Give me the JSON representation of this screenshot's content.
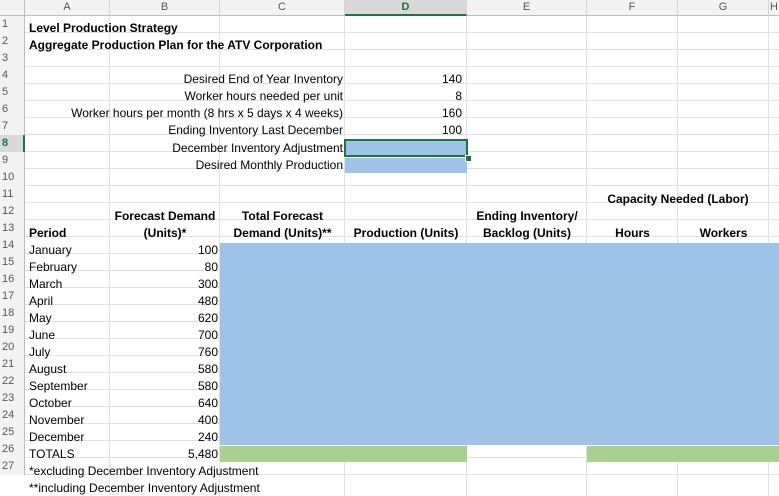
{
  "columns": [
    "A",
    "B",
    "C",
    "D",
    "E",
    "F",
    "G",
    "H"
  ],
  "selected_column": "D",
  "selected_row": "8",
  "rows": [
    "1",
    "2",
    "3",
    "4",
    "5",
    "6",
    "7",
    "8",
    "9",
    "10",
    "11",
    "12",
    "13",
    "14",
    "15",
    "16",
    "17",
    "18",
    "19",
    "20",
    "21",
    "22",
    "23",
    "24",
    "25",
    "26",
    "27"
  ],
  "title": "Level Production Strategy",
  "subtitle": "Aggregate Production Plan for the ATV Corporation",
  "params": [
    {
      "label": "Desired End of Year Inventory",
      "value": "140"
    },
    {
      "label": "Worker hours needed per unit",
      "value": "8"
    },
    {
      "label": "Worker hours per month (8 hrs x 5 days x 4 weeks)",
      "value": "160"
    },
    {
      "label": "Ending Inventory Last December",
      "value": "100"
    },
    {
      "label": "December Inventory Adjustment",
      "value": ""
    },
    {
      "label": "Desired Monthly Production",
      "value": ""
    }
  ],
  "capacity_header": "Capacity Needed (Labor)",
  "headers": {
    "period": "Period",
    "forecast_line1": "Forecast Demand",
    "forecast_line2": "(Units)*",
    "total_line1": "Total Forecast",
    "total_line2": "Demand (Units)**",
    "production": "Production (Units)",
    "ending_line1": "Ending Inventory/",
    "ending_line2": "Backlog (Units)",
    "hours": "Hours",
    "workers": "Workers"
  },
  "months": [
    {
      "name": "January",
      "demand": "100"
    },
    {
      "name": "February",
      "demand": "80"
    },
    {
      "name": "March",
      "demand": "300"
    },
    {
      "name": "April",
      "demand": "480"
    },
    {
      "name": "May",
      "demand": "620"
    },
    {
      "name": "June",
      "demand": "700"
    },
    {
      "name": "July",
      "demand": "760"
    },
    {
      "name": "August",
      "demand": "580"
    },
    {
      "name": "September",
      "demand": "580"
    },
    {
      "name": "October",
      "demand": "640"
    },
    {
      "name": "November",
      "demand": "400"
    },
    {
      "name": "December",
      "demand": "240"
    }
  ],
  "totals": {
    "label": "TOTALS",
    "demand": "5,480"
  },
  "footnotes": [
    "*excluding December Inventory Adjustment",
    "**including December Inventory Adjustment"
  ],
  "colors": {
    "input_fill": "#9fc2e7",
    "total_fill": "#a9d18e",
    "selection": "#217346"
  }
}
